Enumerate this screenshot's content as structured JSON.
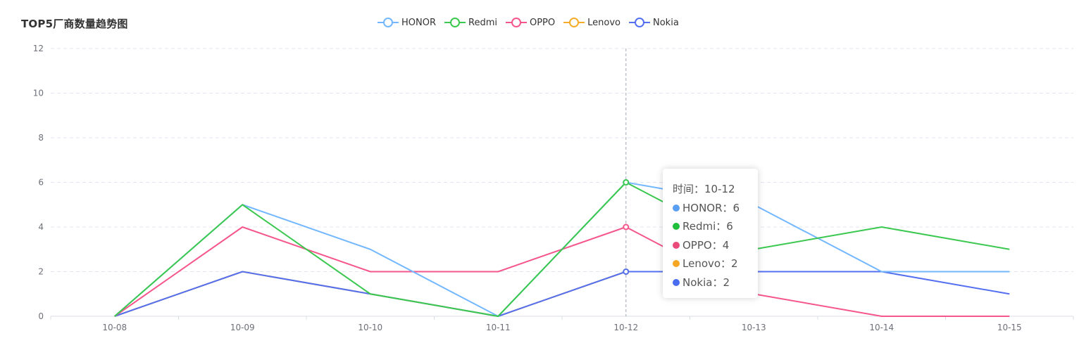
{
  "chart_data": {
    "type": "line",
    "title": "TOP5厂商数量趋势图",
    "categories": [
      "10-08",
      "10-09",
      "10-10",
      "10-11",
      "10-12",
      "10-13",
      "10-14",
      "10-15"
    ],
    "ylim": [
      0,
      12
    ],
    "yticks": [
      0,
      2,
      4,
      6,
      8,
      10,
      12
    ],
    "grid": true,
    "legend_position": "top-center",
    "series": [
      {
        "name": "HONOR",
        "color": "#73b7ff",
        "values": [
          0,
          5,
          3,
          0,
          6,
          5,
          2,
          2
        ]
      },
      {
        "name": "Redmi",
        "color": "#3ac84f",
        "values": [
          0,
          5,
          1,
          0,
          6,
          3,
          4,
          3
        ]
      },
      {
        "name": "OPPO",
        "color": "#f5568c",
        "values": [
          0,
          4,
          2,
          2,
          4,
          1,
          0,
          0
        ]
      },
      {
        "name": "Lenovo",
        "color": "#f6ac2a",
        "values": [
          0,
          2,
          1,
          0,
          2,
          2,
          2,
          2
        ]
      },
      {
        "name": "Nokia",
        "color": "#5470f0",
        "values": [
          0,
          2,
          1,
          0,
          2,
          2,
          2,
          1
        ]
      }
    ],
    "tooltip": {
      "header": "时间：10-12",
      "rows": [
        {
          "label": "HONOR：6",
          "color": "#5b9ff5"
        },
        {
          "label": "Redmi：6",
          "color": "#1fbf3c"
        },
        {
          "label": "OPPO：4",
          "color": "#ea4b7b"
        },
        {
          "label": "Lenovo：2",
          "color": "#f5a623"
        },
        {
          "label": "Nokia：2",
          "color": "#4a6cf0"
        }
      ]
    },
    "highlight_index": 4
  }
}
